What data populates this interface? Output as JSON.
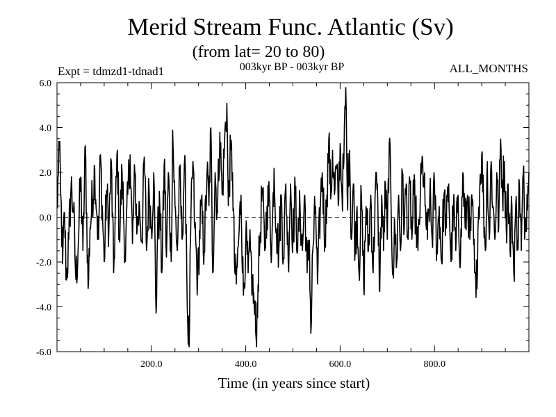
{
  "chart_data": {
    "type": "line",
    "title": "Merid Stream Func. Atlantic (Sv)",
    "subtitle": "(from lat= 20 to 80)",
    "experiment_label": "Expt = tdmzd1-tdnad1",
    "period_label": "003kyr BP - 003kyr BP",
    "months_label": "ALL_MONTHS",
    "xlabel": "Time (in years since start)",
    "ylabel": "",
    "xlim": [
      0,
      1000
    ],
    "ylim": [
      -6,
      6
    ],
    "x_ticks": [
      200,
      400,
      600,
      800
    ],
    "x_tick_labels": [
      "200.0",
      "400.0",
      "600.0",
      "800.0"
    ],
    "y_ticks": [
      -6,
      -4,
      -2,
      0,
      2,
      4,
      6
    ],
    "y_tick_labels": [
      "-6.0",
      "-4.0",
      "-2.0",
      "0.0",
      "2.0",
      "4.0",
      "6.0"
    ],
    "zero_line": true,
    "series": [
      {
        "name": "Merid Stream Func. Atlantic",
        "color": "#000000",
        "x_start": 1,
        "x_step": 1,
        "values": []
      }
    ],
    "anchors": [
      [
        1,
        0.4
      ],
      [
        4,
        3.4
      ],
      [
        8,
        1.0
      ],
      [
        12,
        -2.1
      ],
      [
        16,
        0.2
      ],
      [
        20,
        -2.8
      ],
      [
        25,
        -1.0
      ],
      [
        30,
        1.5
      ],
      [
        35,
        0.3
      ],
      [
        40,
        -2.8
      ],
      [
        45,
        -1.2
      ],
      [
        50,
        1.8
      ],
      [
        55,
        -1.5
      ],
      [
        60,
        3.2
      ],
      [
        66,
        -3.2
      ],
      [
        70,
        -0.5
      ],
      [
        80,
        2.2
      ],
      [
        85,
        0.0
      ],
      [
        88,
        -1.0
      ],
      [
        92,
        2.8
      ],
      [
        100,
        -2.0
      ],
      [
        105,
        1.2
      ],
      [
        110,
        -0.5
      ],
      [
        115,
        2.5
      ],
      [
        120,
        -2.5
      ],
      [
        128,
        3.0
      ],
      [
        132,
        -1.0
      ],
      [
        138,
        2.0
      ],
      [
        145,
        -2.0
      ],
      [
        150,
        1.0
      ],
      [
        155,
        2.8
      ],
      [
        160,
        -1.2
      ],
      [
        165,
        2.0
      ],
      [
        170,
        -0.6
      ],
      [
        175,
        0.5
      ],
      [
        180,
        -1.0
      ],
      [
        185,
        2.7
      ],
      [
        190,
        -1.5
      ],
      [
        195,
        1.4
      ],
      [
        200,
        -0.5
      ],
      [
        205,
        2.0
      ],
      [
        210,
        -4.3
      ],
      [
        213,
        -0.8
      ],
      [
        218,
        0.5
      ],
      [
        222,
        -2.5
      ],
      [
        228,
        2.6
      ],
      [
        232,
        -1.8
      ],
      [
        236,
        2.0
      ],
      [
        242,
        -2.0
      ],
      [
        245,
        3.9
      ],
      [
        250,
        0.5
      ],
      [
        255,
        -1.5
      ],
      [
        260,
        1.9
      ],
      [
        265,
        -1.0
      ],
      [
        270,
        2.4
      ],
      [
        274,
        -0.3
      ],
      [
        276,
        -4.0
      ],
      [
        280,
        -5.8
      ],
      [
        283,
        -1.0
      ],
      [
        288,
        2.5
      ],
      [
        292,
        -0.5
      ],
      [
        298,
        -2.9
      ],
      [
        305,
        0.5
      ],
      [
        312,
        -1.5
      ],
      [
        318,
        2.0
      ],
      [
        322,
        0.5
      ],
      [
        326,
        4.0
      ],
      [
        330,
        -2.5
      ],
      [
        335,
        2.0
      ],
      [
        340,
        0.2
      ],
      [
        345,
        3.8
      ],
      [
        350,
        1.0
      ],
      [
        355,
        3.2
      ],
      [
        360,
        5.1
      ],
      [
        363,
        0.5
      ],
      [
        368,
        3.0
      ],
      [
        372,
        2.0
      ],
      [
        376,
        -2.0
      ],
      [
        380,
        -3.0
      ],
      [
        385,
        -1.0
      ],
      [
        390,
        1.0
      ],
      [
        395,
        -3.5
      ],
      [
        400,
        -1.0
      ],
      [
        405,
        -2.5
      ],
      [
        410,
        -1.5
      ],
      [
        414,
        -3.0
      ],
      [
        418,
        -4.0
      ],
      [
        422,
        -5.4
      ],
      [
        426,
        -3.0
      ],
      [
        430,
        -1.0
      ],
      [
        435,
        1.3
      ],
      [
        440,
        -1.5
      ],
      [
        445,
        0.5
      ],
      [
        450,
        0.8
      ],
      [
        455,
        -1.5
      ],
      [
        460,
        2.2
      ],
      [
        465,
        -0.5
      ],
      [
        470,
        -1.5
      ],
      [
        475,
        1.0
      ],
      [
        480,
        -1.8
      ],
      [
        485,
        1.5
      ],
      [
        490,
        -2.0
      ],
      [
        495,
        1.5
      ],
      [
        500,
        -1.0
      ],
      [
        505,
        1.2
      ],
      [
        510,
        -1.5
      ],
      [
        515,
        0.5
      ],
      [
        520,
        -1.5
      ],
      [
        525,
        1.0
      ],
      [
        530,
        -2.5
      ],
      [
        535,
        -1.0
      ],
      [
        538,
        -5.2
      ],
      [
        542,
        -1.5
      ],
      [
        548,
        0.5
      ],
      [
        552,
        -3.0
      ],
      [
        558,
        0.5
      ],
      [
        562,
        2.0
      ],
      [
        568,
        -1.0
      ],
      [
        572,
        1.0
      ],
      [
        576,
        3.5
      ],
      [
        580,
        0.8
      ],
      [
        584,
        3.0
      ],
      [
        588,
        1.0
      ],
      [
        592,
        2.2
      ],
      [
        596,
        0.5
      ],
      [
        600,
        3.3
      ],
      [
        604,
        1.0
      ],
      [
        608,
        2.5
      ],
      [
        612,
        5.8
      ],
      [
        615,
        1.0
      ],
      [
        620,
        3.0
      ],
      [
        624,
        -1.0
      ],
      [
        628,
        1.5
      ],
      [
        632,
        -1.5
      ],
      [
        636,
        0.5
      ],
      [
        640,
        -2.5
      ],
      [
        645,
        1.0
      ],
      [
        650,
        -3.2
      ],
      [
        655,
        0.5
      ],
      [
        660,
        -1.5
      ],
      [
        665,
        1.0
      ],
      [
        670,
        -2.5
      ],
      [
        675,
        1.5
      ],
      [
        680,
        0.5
      ],
      [
        684,
        -3.3
      ],
      [
        688,
        1.0
      ],
      [
        692,
        -1.5
      ],
      [
        696,
        1.5
      ],
      [
        700,
        -1.0
      ],
      [
        704,
        3.3
      ],
      [
        708,
        0.5
      ],
      [
        712,
        -2.5
      ],
      [
        716,
        -0.5
      ],
      [
        720,
        -2.0
      ],
      [
        724,
        1.0
      ],
      [
        728,
        -1.5
      ],
      [
        732,
        2.0
      ],
      [
        736,
        -0.5
      ],
      [
        740,
        1.5
      ],
      [
        744,
        -1.0
      ],
      [
        748,
        1.5
      ],
      [
        752,
        -1.0
      ],
      [
        756,
        1.0
      ],
      [
        760,
        0.2
      ],
      [
        765,
        -1.5
      ],
      [
        770,
        1.0
      ],
      [
        775,
        2.5
      ],
      [
        780,
        0.5
      ],
      [
        785,
        -1.0
      ],
      [
        790,
        1.0
      ],
      [
        795,
        -1.0
      ],
      [
        800,
        1.5
      ],
      [
        805,
        -1.5
      ],
      [
        810,
        0.5
      ],
      [
        815,
        -2.0
      ],
      [
        820,
        1.0
      ],
      [
        825,
        -0.5
      ],
      [
        830,
        1.5
      ],
      [
        835,
        -2.0
      ],
      [
        840,
        0.5
      ],
      [
        845,
        -1.5
      ],
      [
        850,
        1.0
      ],
      [
        855,
        -2.0
      ],
      [
        860,
        2.0
      ],
      [
        865,
        -0.5
      ],
      [
        870,
        1.0
      ],
      [
        875,
        -1.0
      ],
      [
        880,
        0.5
      ],
      [
        885,
        -2.5
      ],
      [
        888,
        -3.6
      ],
      [
        892,
        -0.5
      ],
      [
        896,
        1.5
      ],
      [
        900,
        2.8
      ],
      [
        904,
        0.5
      ],
      [
        908,
        -1.5
      ],
      [
        912,
        2.5
      ],
      [
        916,
        -1.0
      ],
      [
        920,
        2.5
      ],
      [
        924,
        0.5
      ],
      [
        928,
        -1.0
      ],
      [
        932,
        2.0
      ],
      [
        936,
        -0.5
      ],
      [
        940,
        3.5
      ],
      [
        944,
        1.0
      ],
      [
        948,
        2.5
      ],
      [
        952,
        -0.5
      ],
      [
        956,
        1.5
      ],
      [
        960,
        -1.5
      ],
      [
        964,
        0.5
      ],
      [
        968,
        -2.5
      ],
      [
        972,
        0.5
      ],
      [
        976,
        -1.0
      ],
      [
        980,
        1.5
      ],
      [
        984,
        -1.5
      ],
      [
        988,
        2.0
      ],
      [
        992,
        -0.5
      ],
      [
        996,
        1.0
      ],
      [
        1000,
        2.0
      ]
    ]
  }
}
